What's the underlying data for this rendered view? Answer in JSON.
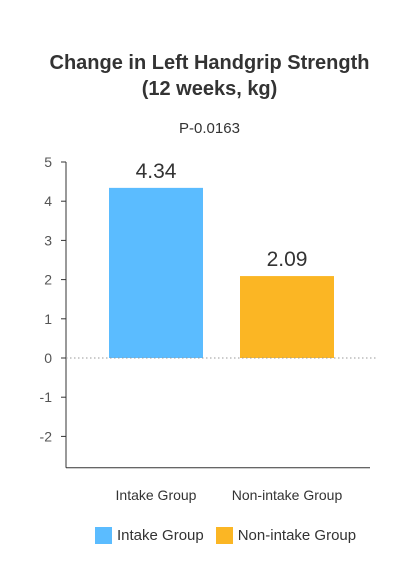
{
  "chart_data": {
    "type": "bar",
    "title_lines": [
      "Change in Left Handgrip Strength",
      "(12 weeks, kg)"
    ],
    "subtitle": "P-0.0163",
    "categories": [
      "Intake Group",
      "Non-intake Group"
    ],
    "values": [
      4.34,
      2.09
    ],
    "value_labels": [
      "4.34",
      "2.09"
    ],
    "colors": [
      "#5bbcff",
      "#fbb624"
    ],
    "yticks": [
      5,
      4,
      3,
      2,
      1,
      0,
      -1,
      -2
    ],
    "ylim": [
      -2.8,
      5
    ],
    "grid": false,
    "legend": {
      "placement": "bottom",
      "entries": [
        {
          "label": "Intake Group",
          "color": "#5bbcff"
        },
        {
          "label": "Non-intake Group",
          "color": "#fbb624"
        }
      ]
    }
  }
}
